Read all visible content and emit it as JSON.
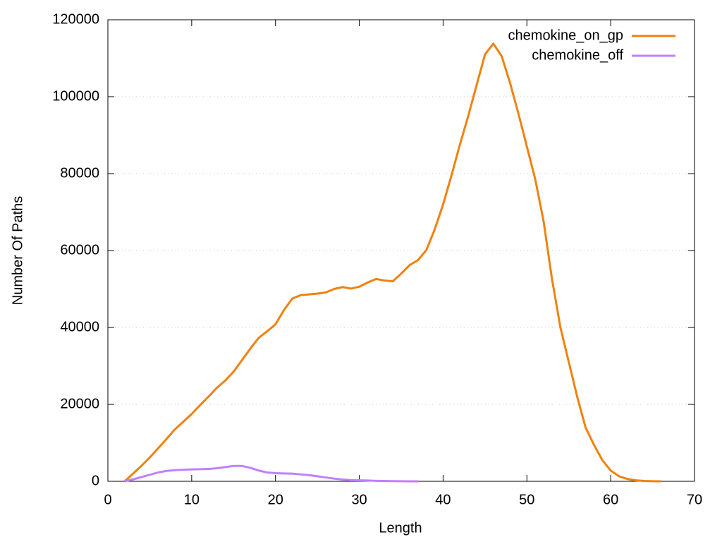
{
  "chart_data": {
    "type": "line",
    "x_label": "Length",
    "y_label": "Number Of Paths",
    "xlim": [
      0,
      70
    ],
    "xticks": [
      0,
      10,
      20,
      30,
      40,
      50,
      60,
      70
    ],
    "ylim": [
      0,
      120000
    ],
    "yticks": [
      0,
      20000,
      40000,
      60000,
      80000,
      100000,
      120000
    ],
    "grid": true,
    "legend": "top-right",
    "series": [
      {
        "name": "chemokine_on_gp",
        "color": "#f0820f",
        "x": [
          2,
          3,
          4,
          5,
          6,
          7,
          8,
          9,
          10,
          11,
          12,
          13,
          14,
          15,
          16,
          17,
          18,
          19,
          20,
          21,
          22,
          23,
          24,
          25,
          26,
          27,
          28,
          29,
          30,
          31,
          32,
          33,
          34,
          35,
          36,
          37,
          38,
          39,
          40,
          41,
          42,
          43,
          44,
          45,
          46,
          47,
          48,
          49,
          50,
          51,
          52,
          53,
          54,
          55,
          56,
          57,
          58,
          59,
          60,
          61,
          62,
          63,
          64,
          65,
          66
        ],
        "values": [
          0,
          2000,
          4000,
          6200,
          8600,
          11000,
          13500,
          15500,
          17500,
          19800,
          22000,
          24300,
          26200,
          28500,
          31500,
          34500,
          37300,
          39000,
          40800,
          44500,
          47500,
          48400,
          48600,
          48800,
          49100,
          50000,
          50500,
          50100,
          50600,
          51700,
          52600,
          52200,
          52000,
          54000,
          56200,
          57500,
          60100,
          65500,
          72000,
          79500,
          87500,
          95000,
          103000,
          111000,
          113800,
          110500,
          103500,
          95500,
          87000,
          78500,
          67500,
          52500,
          40000,
          31000,
          22000,
          14000,
          9500,
          5500,
          2800,
          1300,
          600,
          250,
          100,
          30,
          0
        ]
      },
      {
        "name": "chemokine_off",
        "color": "#c080ff",
        "x": [
          2,
          3,
          4,
          5,
          6,
          7,
          8,
          9,
          10,
          11,
          12,
          13,
          14,
          15,
          16,
          17,
          18,
          19,
          20,
          21,
          22,
          23,
          24,
          25,
          26,
          27,
          28,
          29,
          30,
          31,
          32,
          33,
          34,
          35,
          36,
          37
        ],
        "values": [
          0,
          500,
          1100,
          1700,
          2300,
          2700,
          2900,
          3000,
          3100,
          3150,
          3200,
          3400,
          3700,
          4000,
          4000,
          3500,
          2800,
          2300,
          2100,
          2050,
          2000,
          1800,
          1600,
          1300,
          1000,
          700,
          450,
          300,
          250,
          200,
          120,
          80,
          50,
          30,
          10,
          0
        ]
      }
    ]
  }
}
